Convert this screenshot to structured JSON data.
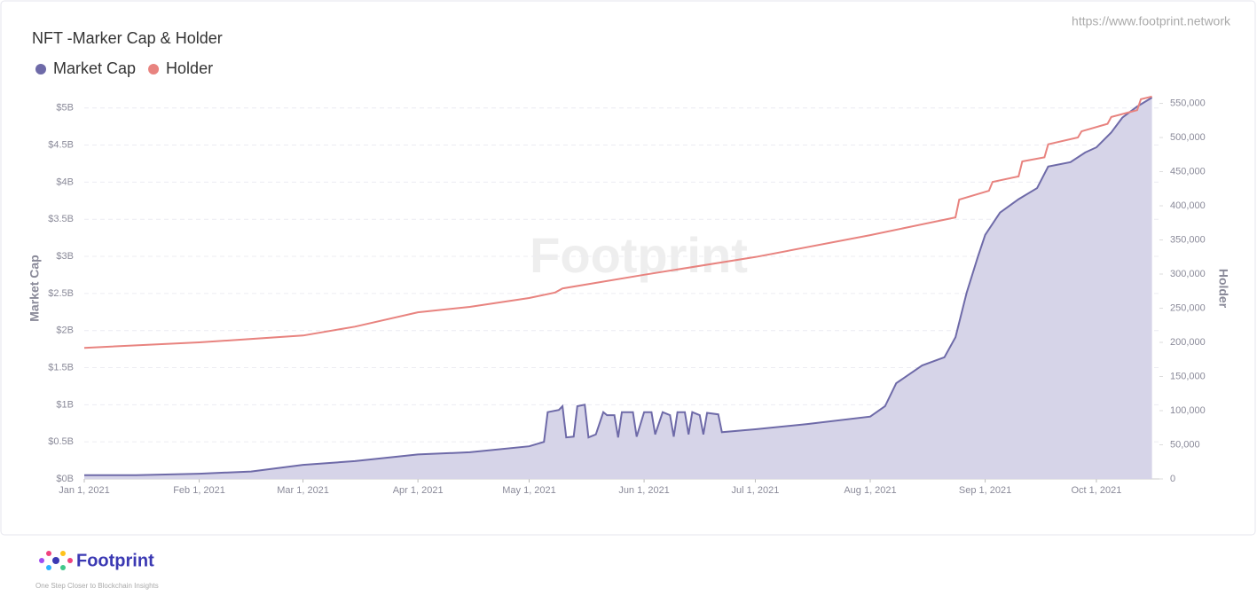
{
  "chart_data": {
    "type": "area-line",
    "title": "NFT -Marker Cap & Holder",
    "source": "https://www.footprint.network",
    "watermark": "Footprint",
    "ylabel": "Market Cap",
    "y2label": "Holder",
    "grid": true,
    "legend": "top-left",
    "xlim": [
      "Jan 1, 2021",
      "Oct 18, 2021"
    ],
    "xticks": [
      "Jan 1, 2021",
      "Feb 1, 2021",
      "Mar 1, 2021",
      "Apr 1, 2021",
      "May 1, 2021",
      "Jun 1, 2021",
      "Jul 1, 2021",
      "Aug 1, 2021",
      "Sep 1, 2021",
      "Oct 1, 2021"
    ],
    "ylim": [
      0,
      5.2
    ],
    "yticks": [
      {
        "value": 0,
        "label": "$0B"
      },
      {
        "value": 0.5,
        "label": "$0.5B"
      },
      {
        "value": 1,
        "label": "$1B"
      },
      {
        "value": 1.5,
        "label": "$1.5B"
      },
      {
        "value": 2,
        "label": "$2B"
      },
      {
        "value": 2.5,
        "label": "$2.5B"
      },
      {
        "value": 3,
        "label": "$3B"
      },
      {
        "value": 3.5,
        "label": "$3.5B"
      },
      {
        "value": 4,
        "label": "$4B"
      },
      {
        "value": 4.5,
        "label": "$4.5B"
      },
      {
        "value": 5,
        "label": "$5B"
      }
    ],
    "y2lim": [
      0,
      565000
    ],
    "y2ticks": [
      0,
      {
        "value": 50000,
        "label": "50,000"
      },
      {
        "value": 100000,
        "label": "100,000"
      },
      {
        "value": 150000,
        "label": "150,000"
      },
      {
        "value": 200000,
        "label": "200,000"
      },
      {
        "value": 250000,
        "label": "250,000"
      },
      {
        "value": 300000,
        "label": "300,000"
      },
      {
        "value": 350000,
        "label": "350,000"
      },
      {
        "value": 400000,
        "label": "400,000"
      },
      {
        "value": 450000,
        "label": "450,000"
      },
      {
        "value": 500000,
        "label": "500,000"
      },
      {
        "value": 550000,
        "label": "550,000"
      }
    ],
    "series": [
      {
        "name": "Market Cap",
        "color": "#6e6aa8",
        "fill": "#d6d4e8",
        "kind": "area",
        "x": [
          "Jan 1, 2021",
          "Jan 15, 2021",
          "Feb 1, 2021",
          "Feb 15, 2021",
          "Mar 1, 2021",
          "Mar 15, 2021",
          "Apr 1, 2021",
          "Apr 15, 2021",
          "May 1, 2021",
          "May 5, 2021",
          "May 6, 2021",
          "May 9, 2021",
          "May 10, 2021",
          "May 11, 2021",
          "May 13, 2021",
          "May 14, 2021",
          "May 16, 2021",
          "May 17, 2021",
          "May 19, 2021",
          "May 21, 2021",
          "May 22, 2021",
          "May 24, 2021",
          "May 25, 2021",
          "May 26, 2021",
          "May 29, 2021",
          "May 30, 2021",
          "Jun 1, 2021",
          "Jun 3, 2021",
          "Jun 4, 2021",
          "Jun 6, 2021",
          "Jun 8, 2021",
          "Jun 9, 2021",
          "Jun 10, 2021",
          "Jun 12, 2021",
          "Jun 13, 2021",
          "Jun 14, 2021",
          "Jun 16, 2021",
          "Jun 17, 2021",
          "Jun 18, 2021",
          "Jun 21, 2021",
          "Jun 22, 2021",
          "Jul 1, 2021",
          "Jul 15, 2021",
          "Aug 1, 2021",
          "Aug 5, 2021",
          "Aug 8, 2021",
          "Aug 15, 2021",
          "Aug 21, 2021",
          "Aug 24, 2021",
          "Aug 27, 2021",
          "Aug 30, 2021",
          "Sep 1, 2021",
          "Sep 5, 2021",
          "Sep 10, 2021",
          "Sep 15, 2021",
          "Sep 18, 2021",
          "Sep 24, 2021",
          "Sep 28, 2021",
          "Oct 1, 2021",
          "Oct 5, 2021",
          "Oct 8, 2021",
          "Oct 12, 2021",
          "Oct 16, 2021"
        ],
        "values": [
          0.05,
          0.05,
          0.07,
          0.1,
          0.19,
          0.24,
          0.33,
          0.36,
          0.44,
          0.5,
          0.9,
          0.93,
          0.98,
          0.56,
          0.57,
          0.98,
          1.0,
          0.56,
          0.6,
          0.9,
          0.86,
          0.86,
          0.56,
          0.9,
          0.9,
          0.57,
          0.9,
          0.9,
          0.6,
          0.9,
          0.86,
          0.57,
          0.9,
          0.9,
          0.6,
          0.9,
          0.86,
          0.6,
          0.89,
          0.87,
          0.63,
          0.67,
          0.74,
          0.84,
          0.98,
          1.29,
          1.53,
          1.64,
          1.91,
          2.51,
          2.99,
          3.29,
          3.59,
          3.77,
          3.92,
          4.21,
          4.27,
          4.4,
          4.47,
          4.67,
          4.87,
          5.02,
          5.14
        ]
      },
      {
        "name": "Holder",
        "color": "#e8837f",
        "kind": "line",
        "axis": "y2",
        "x": [
          "Jan 1, 2021",
          "Feb 1, 2021",
          "Mar 1, 2021",
          "Mar 15, 2021",
          "Apr 1, 2021",
          "Apr 15, 2021",
          "May 1, 2021",
          "May 8, 2021",
          "May 10, 2021",
          "Jun 1, 2021",
          "Jul 1, 2021",
          "Aug 1, 2021",
          "Aug 24, 2021",
          "Aug 25, 2021",
          "Sep 2, 2021",
          "Sep 3, 2021",
          "Sep 10, 2021",
          "Sep 11, 2021",
          "Sep 17, 2021",
          "Sep 18, 2021",
          "Sep 26, 2021",
          "Sep 27, 2021",
          "Oct 4, 2021",
          "Oct 5, 2021",
          "Oct 12, 2021",
          "Oct 13, 2021",
          "Oct 16, 2021"
        ],
        "values": [
          192000,
          200000,
          210000,
          223000,
          244000,
          252000,
          265000,
          273000,
          279000,
          299000,
          325000,
          357000,
          383000,
          409000,
          422000,
          435000,
          443000,
          465000,
          471000,
          490000,
          500000,
          509000,
          520000,
          530000,
          540000,
          556000,
          560000
        ]
      }
    ]
  },
  "footer": {
    "brand": "Footprint",
    "tagline": "One Step Closer to Blockchain Insights"
  }
}
